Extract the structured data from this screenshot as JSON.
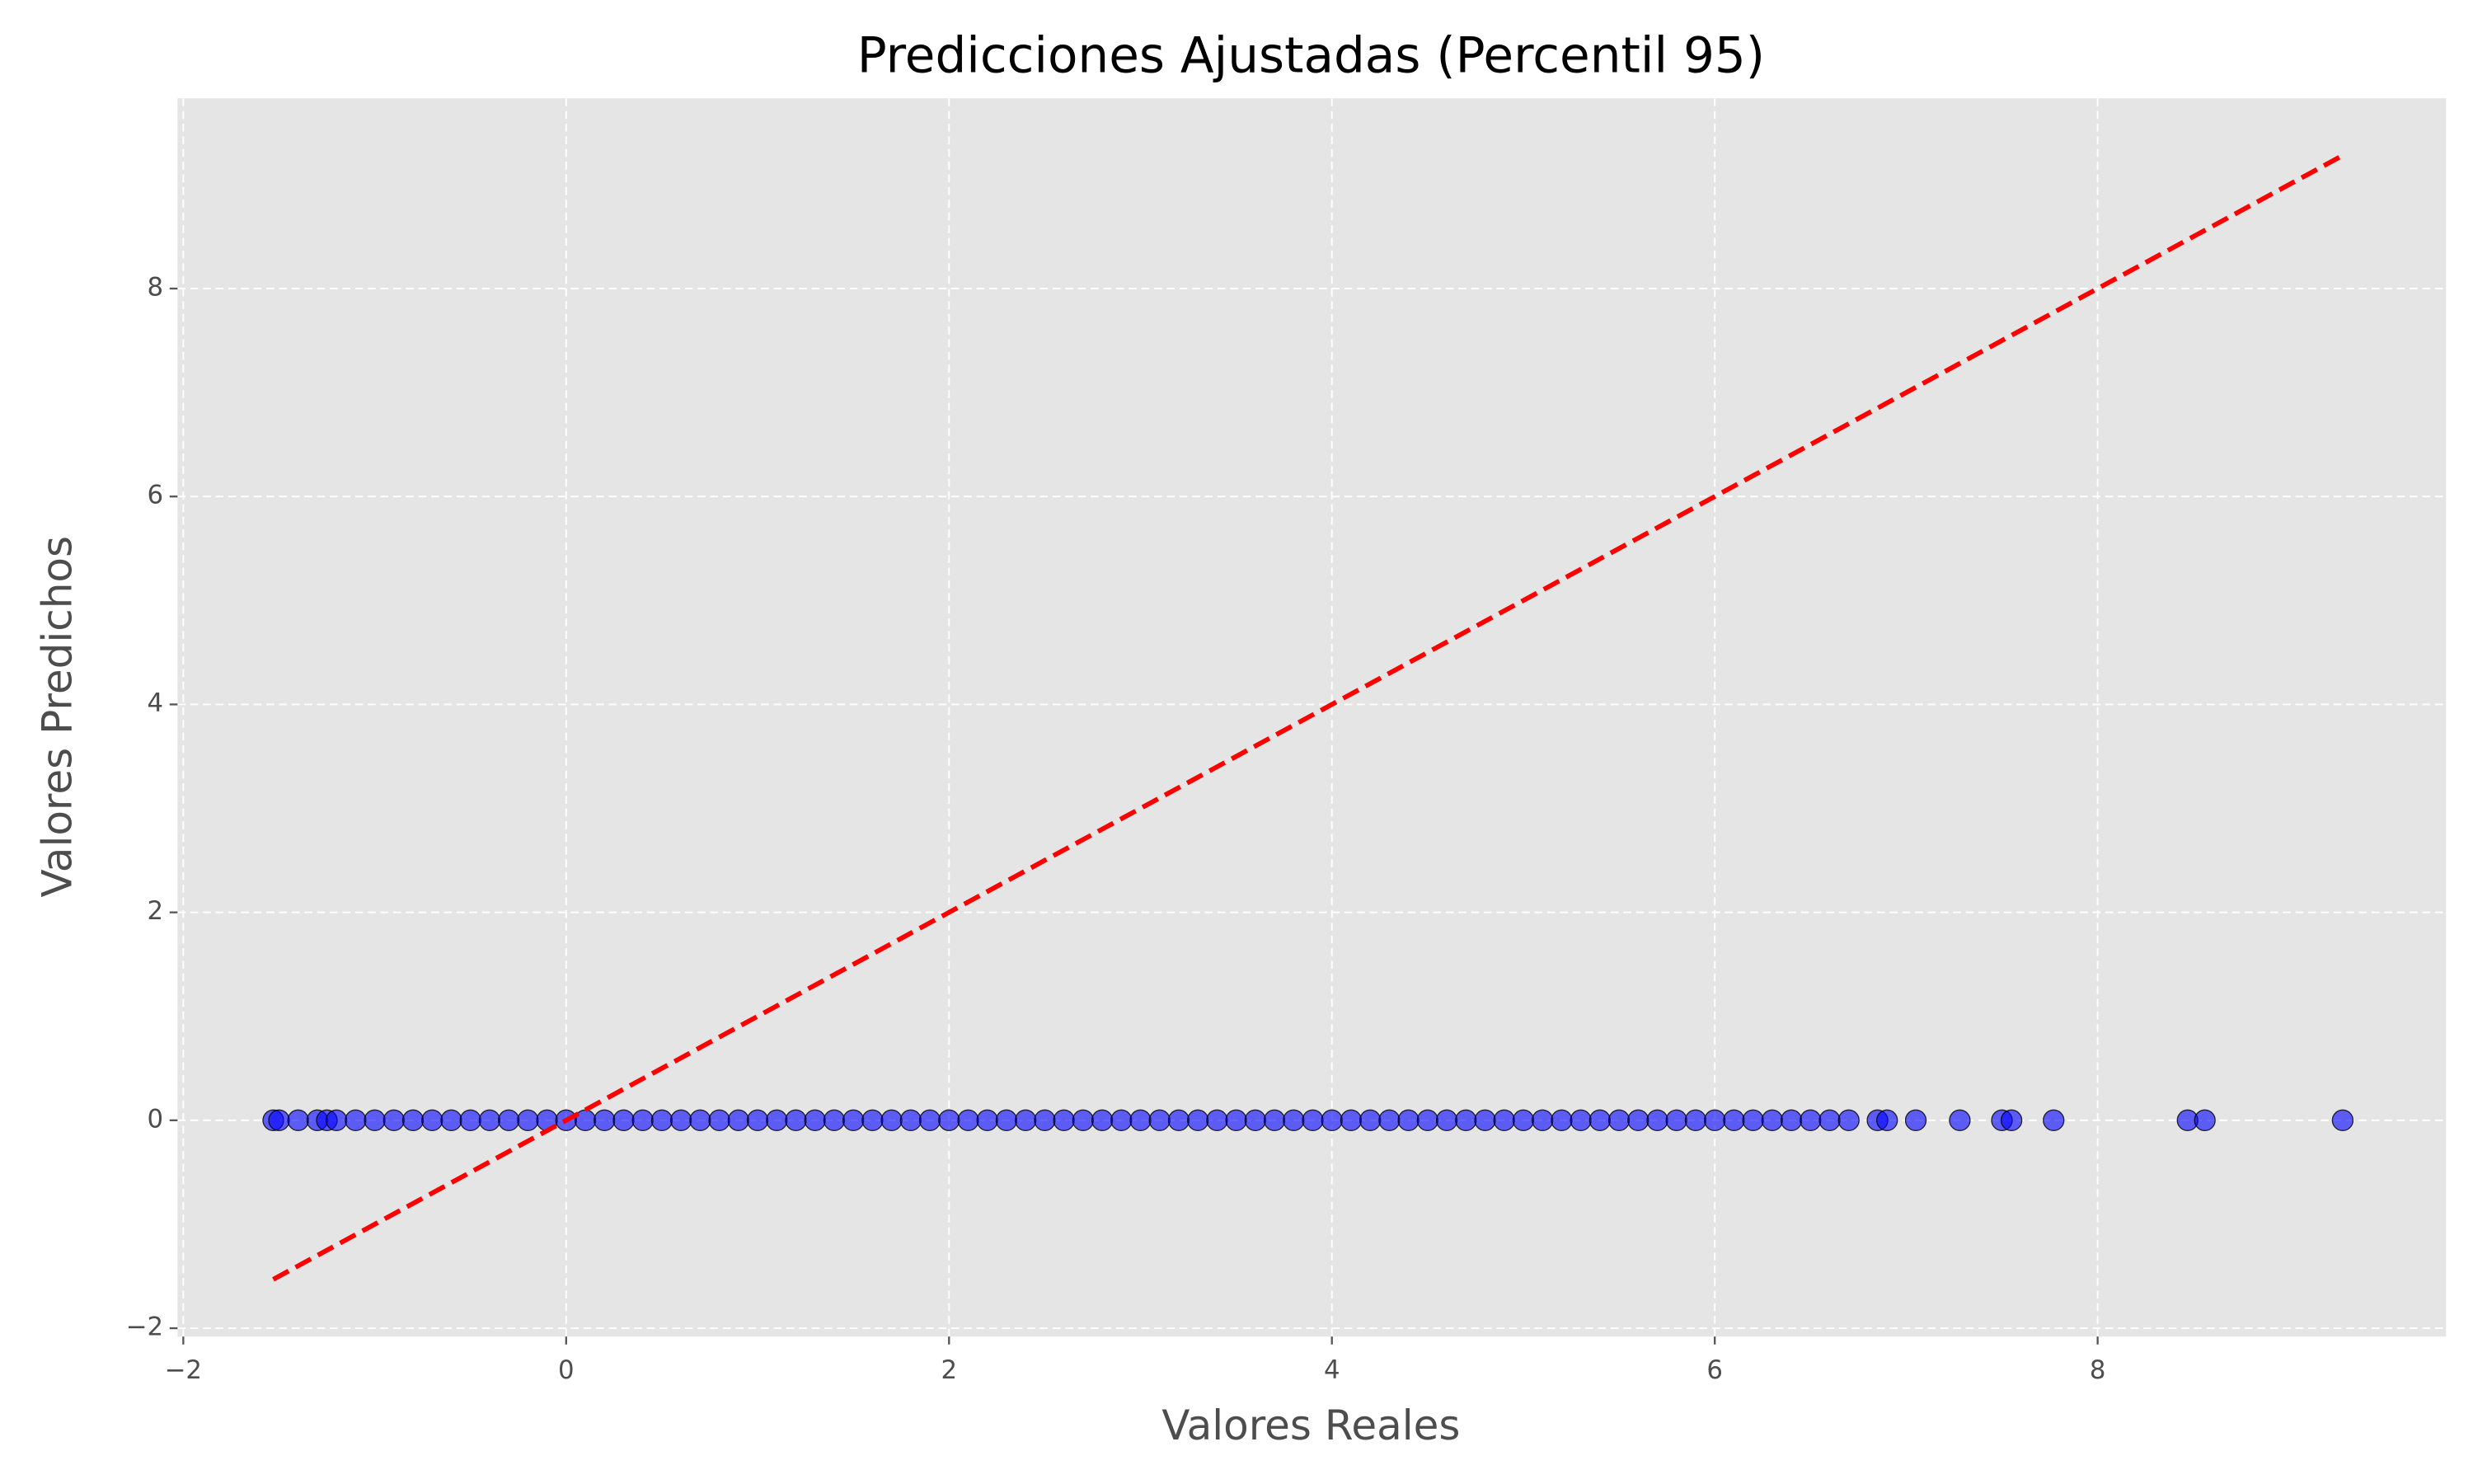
{
  "chart_data": {
    "type": "scatter",
    "title": "Predicciones Ajustadas (Percentil 95)",
    "x_label": "Valores Reales",
    "y_label": "Valores Predichos",
    "xlim": [
      -2.03,
      9.82
    ],
    "ylim": [
      -2.08,
      9.83
    ],
    "xticks": [
      {
        "value": -2,
        "label": "−2"
      },
      0,
      2,
      4,
      6,
      8
    ],
    "yticks": [
      {
        "value": -2,
        "label": "−2"
      },
      0,
      2,
      4,
      6,
      8
    ],
    "grid": true,
    "series": [
      {
        "type": "scatter",
        "color": "#0000ff",
        "x": [
          -1.53,
          -1.5,
          -1.4,
          -1.3,
          -1.25,
          -1.2,
          -1.1,
          -1.0,
          -0.9,
          -0.8,
          -0.7,
          -0.6,
          -0.5,
          -0.4,
          -0.3,
          -0.2,
          -0.1,
          0,
          0.1,
          0.2,
          0.3,
          0.4,
          0.5,
          0.6,
          0.7,
          0.8,
          0.9,
          1.0,
          1.1,
          1.2,
          1.3,
          1.4,
          1.5,
          1.6,
          1.7,
          1.8,
          1.9,
          2.0,
          2.1,
          2.2,
          2.3,
          2.4,
          2.5,
          2.6,
          2.7,
          2.8,
          2.9,
          3.0,
          3.1,
          3.2,
          3.3,
          3.4,
          3.5,
          3.6,
          3.7,
          3.8,
          3.9,
          4.0,
          4.1,
          4.2,
          4.3,
          4.4,
          4.5,
          4.6,
          4.7,
          4.8,
          4.9,
          5.0,
          5.1,
          5.2,
          5.3,
          5.4,
          5.5,
          5.6,
          5.7,
          5.8,
          5.9,
          6.0,
          6.1,
          6.2,
          6.3,
          6.4,
          6.5,
          6.6,
          6.7,
          6.85,
          6.9,
          7.05,
          7.28,
          7.5,
          7.55,
          7.77,
          8.47,
          8.56,
          9.28
        ],
        "values": [
          0,
          0,
          0,
          0,
          0,
          0,
          0,
          0,
          0,
          0,
          0,
          0,
          0,
          0,
          0,
          0,
          0,
          0,
          0,
          0,
          0,
          0,
          0,
          0,
          0,
          0,
          0,
          0,
          0,
          0,
          0,
          0,
          0,
          0,
          0,
          0,
          0,
          0,
          0,
          0,
          0,
          0,
          0,
          0,
          0,
          0,
          0,
          0,
          0,
          0,
          0,
          0,
          0,
          0,
          0,
          0,
          0,
          0,
          0,
          0,
          0,
          0,
          0,
          0,
          0,
          0,
          0,
          0,
          0,
          0,
          0,
          0,
          0,
          0,
          0,
          0,
          0,
          0,
          0,
          0,
          0,
          0,
          0,
          0,
          0,
          0,
          0,
          0,
          0,
          0,
          0,
          0,
          0,
          0,
          0
        ]
      },
      {
        "type": "line",
        "color": "#ff0000",
        "dashed": true,
        "x": [
          -1.53,
          9.28
        ],
        "values": [
          -1.53,
          9.28
        ]
      }
    ]
  }
}
